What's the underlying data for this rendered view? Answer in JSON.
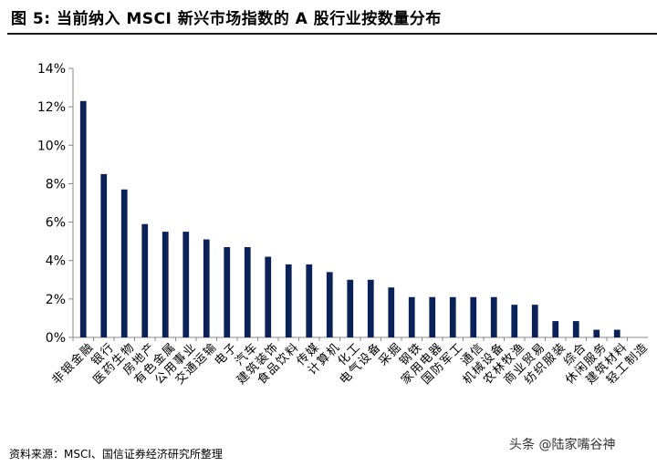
{
  "figure": {
    "title": "图 5: 当前纳入 MSCI 新兴市场指数的 A 股行业按数量分布",
    "source": "资料来源：MSCI、国信证券经济研究所整理",
    "watermark": "头条 @陆家嘴谷神"
  },
  "colors": {
    "bar": "#0a2257",
    "axis": "#888888"
  },
  "chart_data": {
    "type": "bar",
    "title": "当前纳入 MSCI 新兴市场指数的 A 股行业按数量分布",
    "xlabel": "",
    "ylabel": "",
    "ylim": [
      0,
      14
    ],
    "yticks": [
      0,
      2,
      4,
      6,
      8,
      10,
      12,
      14
    ],
    "ytick_labels": [
      "0%",
      "2%",
      "4%",
      "6%",
      "8%",
      "10%",
      "12%",
      "14%"
    ],
    "grid": false,
    "categories": [
      "非银金融",
      "银行",
      "医药生物",
      "房地产",
      "有色金属",
      "公用事业",
      "交通运输",
      "电子",
      "汽车",
      "建筑装饰",
      "食品饮料",
      "传媒",
      "计算机",
      "化工",
      "电气设备",
      "采掘",
      "钢铁",
      "家用电器",
      "国防军工",
      "通信",
      "机械设备",
      "农林牧渔",
      "商业贸易",
      "纺织服装",
      "综合",
      "休闲服务",
      "建筑材料",
      "轻工制造"
    ],
    "values": [
      12.3,
      8.5,
      7.7,
      5.9,
      5.5,
      5.5,
      5.1,
      4.7,
      4.7,
      4.2,
      3.8,
      3.8,
      3.4,
      3.0,
      3.0,
      2.6,
      2.1,
      2.1,
      2.1,
      2.1,
      2.1,
      1.7,
      1.7,
      0.85,
      0.85,
      0.4,
      0.4,
      0.0
    ]
  }
}
